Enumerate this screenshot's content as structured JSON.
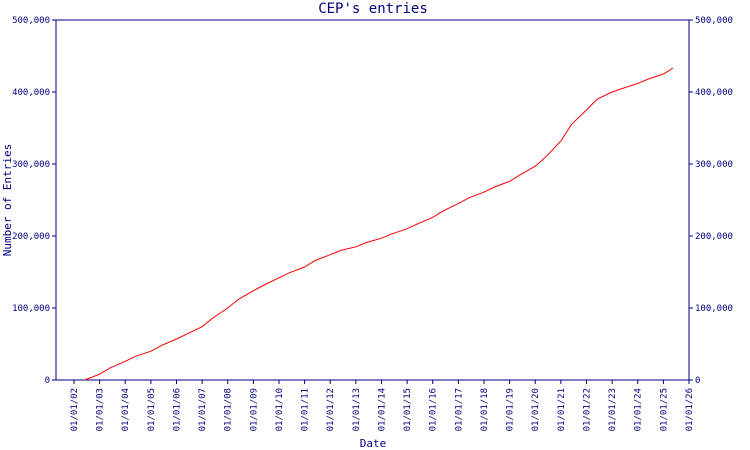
{
  "chart_data": {
    "type": "line",
    "title": "CEP's entries",
    "xlabel": "Date",
    "ylabel": "Number of Entries",
    "ylim": [
      0,
      500000
    ],
    "y_ticks": [
      "0",
      "100,000",
      "200,000",
      "300,000",
      "400,000",
      "500,000"
    ],
    "y_tick_values": [
      0,
      100000,
      200000,
      300000,
      400000,
      500000
    ],
    "x_ticks": [
      "01/01/02",
      "01/01/03",
      "01/01/04",
      "01/01/05",
      "01/01/06",
      "01/01/07",
      "01/01/08",
      "01/01/09",
      "01/01/10",
      "01/01/11",
      "01/01/12",
      "01/01/13",
      "01/01/14",
      "01/01/15",
      "01/01/16",
      "01/01/17",
      "01/01/18",
      "01/01/19",
      "01/01/20",
      "01/01/21",
      "01/01/22",
      "01/01/23",
      "01/01/24",
      "01/01/25",
      "01/01/26"
    ],
    "grid": false,
    "line_color": "#ff0000",
    "axis_color": "#000080",
    "series": [
      {
        "x": [
          "2002-06-01",
          "2003-01-01",
          "2003-06-01",
          "2004-01-01",
          "2004-06-01",
          "2005-01-01",
          "2005-06-01",
          "2006-01-01",
          "2006-06-01",
          "2007-01-01",
          "2007-06-01",
          "2008-01-01",
          "2008-06-01",
          "2009-01-01",
          "2009-06-01",
          "2010-01-01",
          "2010-06-01",
          "2011-01-01",
          "2011-06-01",
          "2012-01-01",
          "2012-06-01",
          "2013-01-01",
          "2013-06-01",
          "2014-01-01",
          "2014-06-01",
          "2015-01-01",
          "2015-06-01",
          "2016-01-01",
          "2016-06-01",
          "2017-01-01",
          "2017-06-01",
          "2018-01-01",
          "2018-06-01",
          "2019-01-01",
          "2019-06-01",
          "2020-01-01",
          "2020-06-01",
          "2021-01-01",
          "2021-06-01",
          "2022-01-01",
          "2022-06-01",
          "2023-01-01",
          "2023-06-01",
          "2024-01-01",
          "2024-06-01",
          "2025-01-01",
          "2025-05-15"
        ],
        "values": [
          0,
          8000,
          17000,
          26000,
          33000,
          40000,
          48000,
          57000,
          64000,
          74000,
          86000,
          100000,
          112000,
          124000,
          132000,
          142000,
          149000,
          157000,
          166000,
          174000,
          180000,
          185000,
          191000,
          197000,
          203000,
          210000,
          217000,
          226000,
          235000,
          245000,
          253000,
          261000,
          268000,
          276000,
          285000,
          297000,
          310000,
          332000,
          355000,
          375000,
          390000,
          400000,
          405000,
          412000,
          418000,
          425000,
          433000
        ]
      }
    ]
  }
}
